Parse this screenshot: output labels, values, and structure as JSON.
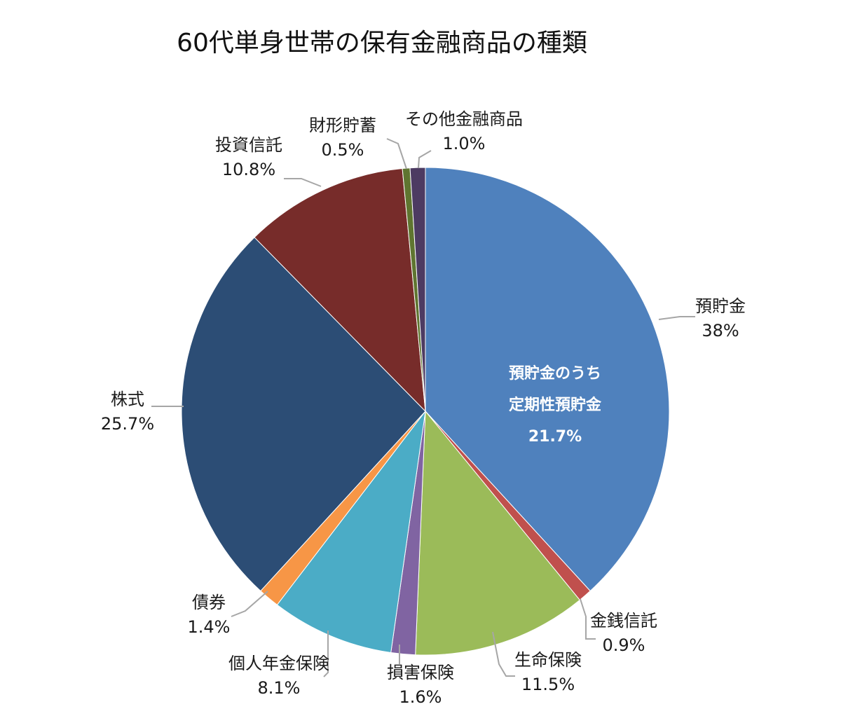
{
  "chart_data": {
    "type": "pie",
    "title": "60代単身世帯の保有金融商品の種類",
    "slices": [
      {
        "name": "預貯金",
        "value": 38.0,
        "label": "38%",
        "color": "#4f81bd"
      },
      {
        "name": "金銭信託",
        "value": 0.9,
        "label": "0.9%",
        "color": "#c0504d"
      },
      {
        "name": "生命保険",
        "value": 11.5,
        "label": "11.5%",
        "color": "#9bbb59"
      },
      {
        "name": "損害保険",
        "value": 1.6,
        "label": "1.6%",
        "color": "#8064a2"
      },
      {
        "name": "個人年金保険",
        "value": 8.1,
        "label": "8.1%",
        "color": "#4bacc6"
      },
      {
        "name": "債券",
        "value": 1.4,
        "label": "1.4%",
        "color": "#f79646"
      },
      {
        "name": "株式",
        "value": 25.7,
        "label": "25.7%",
        "color": "#2c4d75"
      },
      {
        "name": "投資信託",
        "value": 10.8,
        "label": "10.8%",
        "color": "#772c2a"
      },
      {
        "name": "財形貯蓄",
        "value": 0.5,
        "label": "0.5%",
        "color": "#5f7530"
      },
      {
        "name": "その他金融商品",
        "value": 1.0,
        "label": "1.0%",
        "color": "#4d3b62"
      }
    ],
    "annotation": {
      "line1": "預貯金のうち",
      "line2": "定期性預貯金",
      "value": "21.7%"
    }
  }
}
